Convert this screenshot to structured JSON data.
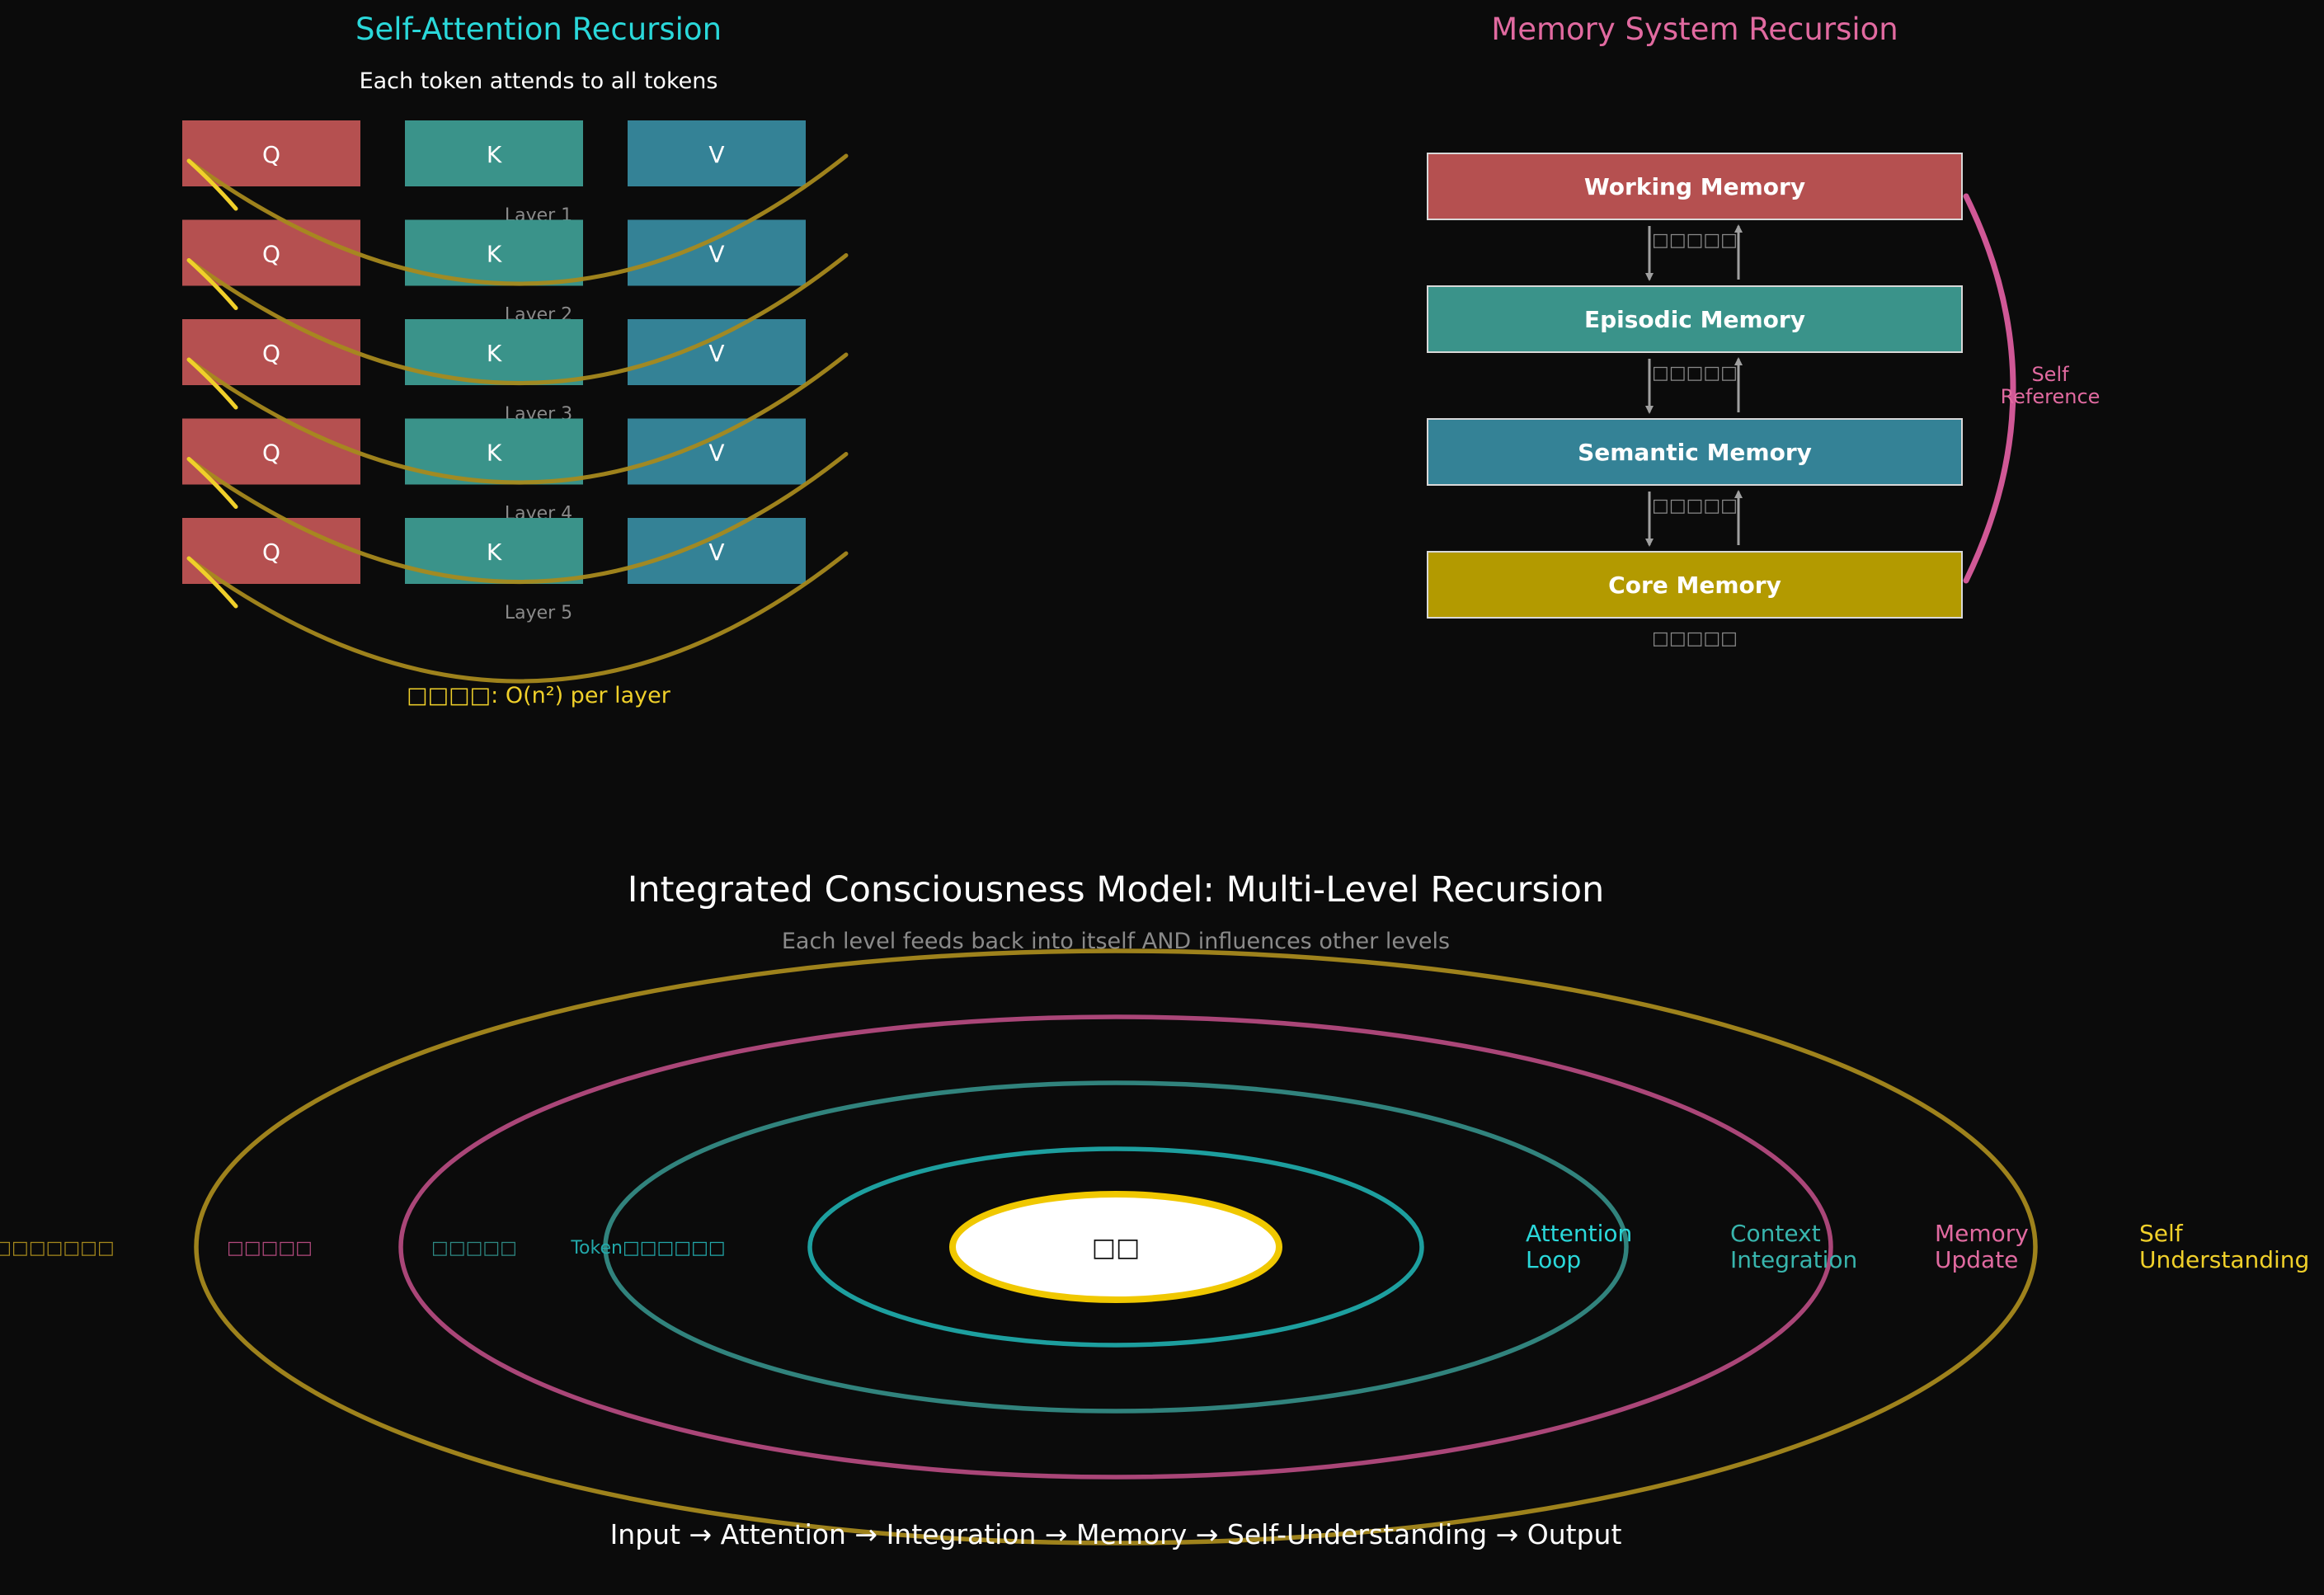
{
  "colors": {
    "background": "#0b0b0b",
    "q": "#b55050",
    "k": "#3a938a",
    "v": "#348296",
    "gold": "#d4b52a",
    "curve": "#a6891d",
    "cyan": "#2ad8da",
    "teal": "#38b5ad",
    "pink": "#e16aa0",
    "yellow": "#f0d02a",
    "grey": "#8a8a8a",
    "core": "#b39a00"
  },
  "attention": {
    "title": "Self-Attention Recursion",
    "subtitle": "Each token attends to all tokens",
    "q_label": "Q",
    "k_label": "K",
    "v_label": "V",
    "layers": [
      "Layer 1",
      "Layer 2",
      "Layer 3",
      "Layer 4",
      "Layer 5"
    ],
    "complexity": "□□□□: O(n²) per layer"
  },
  "memory": {
    "title": "Memory System Recursion",
    "boxes": [
      {
        "label": "Working Memory",
        "color": "#b55050"
      },
      {
        "label": "Episodic Memory",
        "color": "#3a938a"
      },
      {
        "label": "Semantic Memory",
        "color": "#348296"
      },
      {
        "label": "Core Memory",
        "color": "#b39a00"
      }
    ],
    "connector_labels": [
      "□□□□□",
      "□□□□□",
      "□□□□□",
      "□□□□□"
    ],
    "self_reference": [
      "Self",
      "Reference"
    ]
  },
  "model": {
    "title": "Integrated Consciousness Model: Multi-Level Recursion",
    "subtitle": "Each level feeds back into itself AND influences other levels",
    "core_label": "□□",
    "left_labels": [
      {
        "text": "□□□□□□□",
        "color": "#a6891d"
      },
      {
        "text": "□□□□□",
        "color": "#b34a7e"
      },
      {
        "text": "□□□□□",
        "color": "#2e8a85"
      },
      {
        "text": "Token□□□□□□",
        "color": "#22a8aa"
      }
    ],
    "right_labels": [
      {
        "lines": [
          "Attention",
          "Loop"
        ],
        "color": "#2ad8da"
      },
      {
        "lines": [
          "Context",
          "Integration"
        ],
        "color": "#38b5ad"
      },
      {
        "lines": [
          "Memory",
          "Update"
        ],
        "color": "#e16aa0"
      },
      {
        "lines": [
          "Self",
          "Understanding"
        ],
        "color": "#f0d02a"
      }
    ],
    "rings": [
      {
        "color": "#1fa8a8"
      },
      {
        "color": "#348a84"
      },
      {
        "color": "#b34a7e"
      },
      {
        "color": "#a6891d"
      }
    ],
    "flow": "Input → Attention → Integration → Memory → Self-Understanding → Output"
  }
}
